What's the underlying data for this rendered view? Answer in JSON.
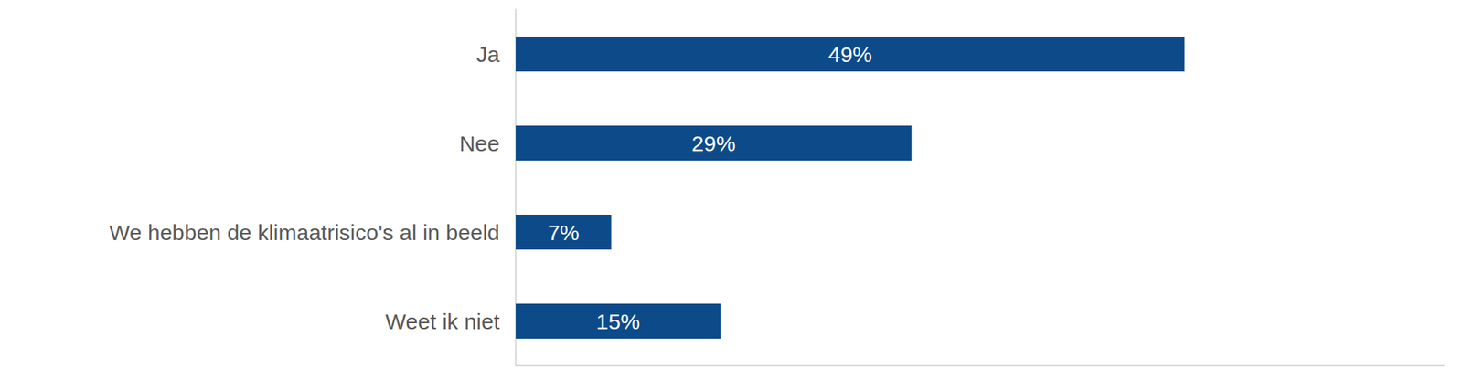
{
  "chart_data": {
    "type": "bar",
    "orientation": "horizontal",
    "categories": [
      "Ja",
      "Nee",
      "We hebben de klimaatrisico's al in beeld",
      "Weet ik niet"
    ],
    "values": [
      49,
      29,
      7,
      15
    ],
    "value_labels": [
      "49%",
      "29%",
      "7%",
      "15%"
    ],
    "color": "#0d4a8a",
    "xlim": [
      0,
      68
    ],
    "grid": false,
    "data_labels": true,
    "tick_labels": "y"
  }
}
